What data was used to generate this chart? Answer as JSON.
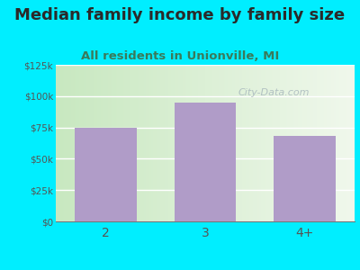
{
  "title": "Median family income by family size",
  "subtitle": "All residents in Unionville, MI",
  "categories": [
    "2",
    "3",
    "4+"
  ],
  "values": [
    75000,
    95000,
    68000
  ],
  "bar_color": "#b09cc8",
  "background_color": "#00eeff",
  "plot_bg_left_color": "#c8e8c0",
  "plot_bg_right_color": "#f0f5ee",
  "title_color": "#2a2a2a",
  "subtitle_color": "#3a7a5a",
  "tick_label_color": "#555555",
  "ylim": [
    0,
    125000
  ],
  "yticks": [
    0,
    25000,
    50000,
    75000,
    100000,
    125000
  ],
  "ytick_labels": [
    "$0",
    "$25k",
    "$50k",
    "$75k",
    "$100k",
    "$125k"
  ],
  "title_fontsize": 13,
  "subtitle_fontsize": 9.5,
  "watermark": "City-Data.com"
}
